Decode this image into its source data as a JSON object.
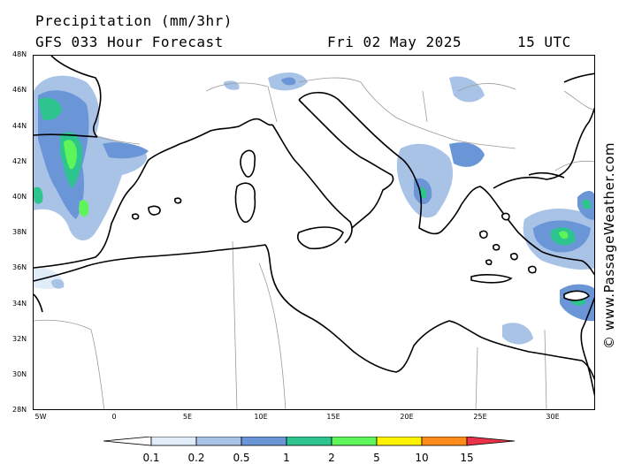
{
  "header": {
    "title": "Precipitation (mm/3hr)",
    "subtitle": "GFS 033 Hour Forecast",
    "date": "Fri 02 May 2025",
    "time": "15 UTC"
  },
  "map": {
    "lat_labels": [
      "48N",
      "46N",
      "44N",
      "42N",
      "40N",
      "38N",
      "36N",
      "34N",
      "32N",
      "30N",
      "28N"
    ],
    "lon_labels": [
      "5W",
      "0",
      "5E",
      "10E",
      "15E",
      "20E",
      "25E",
      "30E"
    ],
    "credit": "© www.PassageWeather.com"
  },
  "legend": {
    "labels": [
      "0.1",
      "0.2",
      "0.5",
      "1",
      "2",
      "5",
      "10",
      "15"
    ],
    "colors": [
      "#ffffff",
      "#e1ecf9",
      "#a9c3e6",
      "#6a96d8",
      "#2dc48d",
      "#5ef55a",
      "#fff200",
      "#ff8c1a",
      "#e8334a"
    ]
  }
}
